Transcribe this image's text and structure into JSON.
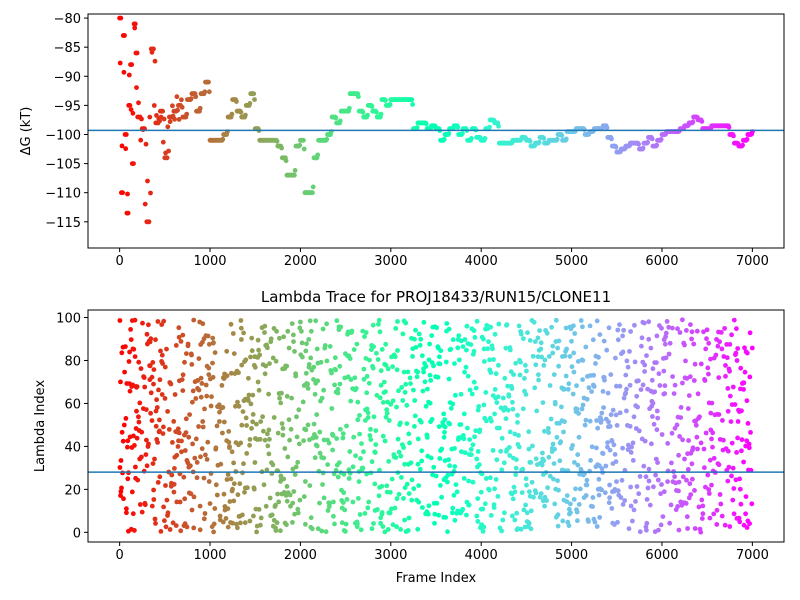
{
  "chart_data": [
    {
      "type": "scatter",
      "title": "",
      "xlabel": "",
      "ylabel": "ΔG (kT)",
      "xlim": [
        -350,
        7350
      ],
      "ylim": [
        -119.5,
        -79.3
      ],
      "xticks": [
        0,
        1000,
        2000,
        3000,
        4000,
        5000,
        6000,
        7000
      ],
      "yticks": [
        -115,
        -110,
        -105,
        -100,
        -95,
        -90,
        -85,
        -80
      ],
      "reference_line": -99.3,
      "reference_color": "#1f77b4",
      "colormap": "rainbow (early frames red → late frames violet)",
      "series": [
        {
          "name": "",
          "x": [
            0,
            20,
            40,
            60,
            80,
            100,
            120,
            140,
            160,
            180,
            200,
            250,
            300,
            350,
            400,
            450,
            500,
            550,
            600,
            650,
            700,
            750,
            800,
            850,
            900,
            950,
            1000,
            1050,
            1100,
            1150,
            1200,
            1250,
            1300,
            1350,
            1400,
            1450,
            1500,
            1550,
            1600,
            1650,
            1700,
            1750,
            1800,
            1850,
            1900,
            1950,
            2000,
            2050,
            2100,
            2150,
            2200,
            2250,
            2300,
            2350,
            2400,
            2450,
            2500,
            2550,
            2600,
            2650,
            2700,
            2750,
            2800,
            2850,
            2900,
            2950,
            3000,
            3050,
            3100,
            3150,
            3200,
            3250,
            3300,
            3350,
            3400,
            3450,
            3500,
            3550,
            3600,
            3650,
            3700,
            3750,
            3800,
            3850,
            3900,
            3950,
            4000,
            4050,
            4100,
            4150,
            4200,
            4250,
            4300,
            4350,
            4400,
            4450,
            4500,
            4550,
            4600,
            4650,
            4700,
            4750,
            4800,
            4850,
            4900,
            4950,
            5000,
            5050,
            5100,
            5150,
            5200,
            5250,
            5300,
            5350,
            5400,
            5450,
            5500,
            5550,
            5600,
            5650,
            5700,
            5750,
            5800,
            5850,
            5900,
            5950,
            6000,
            6050,
            6100,
            6150,
            6200,
            6250,
            6300,
            6350,
            6400,
            6450,
            6500,
            6550,
            6600,
            6650,
            6700,
            6750,
            6800,
            6850,
            6900,
            6950,
            7000
          ],
          "y": [
            -80,
            -110,
            -83,
            -100,
            -113.5,
            -95,
            -88,
            -105,
            -81,
            -86,
            -97,
            -99,
            -115,
            -85.3,
            -98,
            -96,
            -104,
            -97,
            -96,
            -95,
            -97,
            -94,
            -93,
            -96,
            -93,
            -91,
            -101,
            -101,
            -101,
            -100,
            -97,
            -94,
            -96,
            -97,
            -95,
            -93,
            -99,
            -101,
            -101,
            -101,
            -101,
            -102,
            -104,
            -107,
            -107,
            -102,
            -101,
            -110,
            -110,
            -104,
            -101,
            -101,
            -100,
            -97,
            -98,
            -96,
            -96,
            -93,
            -93,
            -96,
            -97,
            -95,
            -96,
            -97,
            -94,
            -95,
            -94,
            -94,
            -94,
            -94,
            -94,
            -99,
            -98,
            -98,
            -99,
            -98.5,
            -99,
            -101,
            -100,
            -99,
            -98.5,
            -100,
            -99,
            -101,
            -99,
            -100.5,
            -101,
            -99,
            -97.5,
            -98,
            -101.5,
            -101.5,
            -101.5,
            -101,
            -101,
            -100.5,
            -101,
            -102,
            -101.5,
            -100.5,
            -101.5,
            -101,
            -101,
            -100,
            -101,
            -99.5,
            -99.5,
            -99,
            -99,
            -100,
            -99.5,
            -99,
            -99,
            -98.5,
            -100.5,
            -102,
            -103,
            -102.5,
            -102,
            -101.5,
            -101.5,
            -102.5,
            -101.5,
            -100.5,
            -102,
            -101,
            -100,
            -99.5,
            -99.5,
            -99.5,
            -99,
            -98.5,
            -98,
            -97,
            -97.5,
            -99,
            -99,
            -98.5,
            -98.5,
            -98.5,
            -98.5,
            -100,
            -101.5,
            -102,
            -101,
            -100,
            -99.5
          ]
        }
      ]
    },
    {
      "type": "scatter",
      "title": "Lambda Trace for PROJ18433/RUN15/CLONE11",
      "xlabel": "Frame Index",
      "ylabel": "Lambda Index",
      "xlim": [
        -350,
        7350
      ],
      "ylim": [
        -4.5,
        103.5
      ],
      "xticks": [
        0,
        1000,
        2000,
        3000,
        4000,
        5000,
        6000,
        7000
      ],
      "yticks": [
        0,
        20,
        40,
        60,
        80,
        100
      ],
      "reference_line": 28,
      "reference_color": "#1f77b4",
      "colormap": "rainbow (early frames red → late frames violet)",
      "series": [
        {
          "name": "",
          "description_of_distribution": "dense vertical streaks spanning lambda 0–99 across all frames 0–7000",
          "x_range": [
            0,
            7000
          ],
          "y_range": [
            0,
            99
          ]
        }
      ]
    }
  ]
}
